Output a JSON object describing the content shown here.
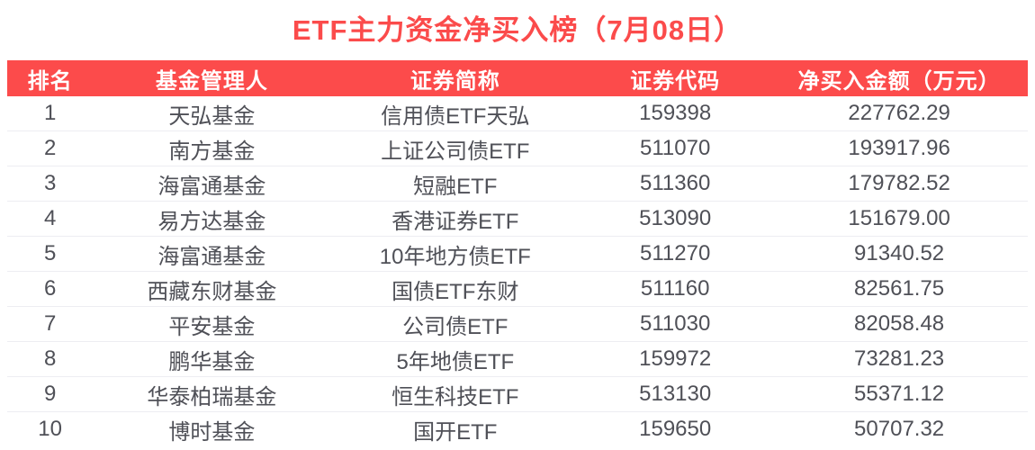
{
  "title": "ETF主力资金净买入榜（7月08日）",
  "colors": {
    "accent": "#fc4b4b",
    "title": "#fb4b4b",
    "header_text": "#ffffff",
    "body_text": "#4f5057",
    "row_divider": "#ededf2",
    "page_background": "#ffffff"
  },
  "chart_data": {
    "type": "table",
    "title": "ETF主力资金净买入榜（7月08日）",
    "columns": [
      "排名",
      "基金管理人",
      "证券简称",
      "证券代码",
      "净买入金额（万元）"
    ],
    "rows": [
      [
        "1",
        "天弘基金",
        "信用债ETF天弘",
        "159398",
        "227762.29"
      ],
      [
        "2",
        "南方基金",
        "上证公司债ETF",
        "511070",
        "193917.96"
      ],
      [
        "3",
        "海富通基金",
        "短融ETF",
        "511360",
        "179782.52"
      ],
      [
        "4",
        "易方达基金",
        "香港证券ETF",
        "513090",
        "151679.00"
      ],
      [
        "5",
        "海富通基金",
        "10年地方债ETF",
        "511270",
        "91340.52"
      ],
      [
        "6",
        "西藏东财基金",
        "国债ETF东财",
        "511160",
        "82561.75"
      ],
      [
        "7",
        "平安基金",
        "公司债ETF",
        "511030",
        "82058.48"
      ],
      [
        "8",
        "鹏华基金",
        "5年地债ETF",
        "159972",
        "73281.23"
      ],
      [
        "9",
        "华泰柏瑞基金",
        "恒生科技ETF",
        "513130",
        "55371.12"
      ],
      [
        "10",
        "博时基金",
        "国开ETF",
        "159650",
        "50707.32"
      ]
    ]
  }
}
